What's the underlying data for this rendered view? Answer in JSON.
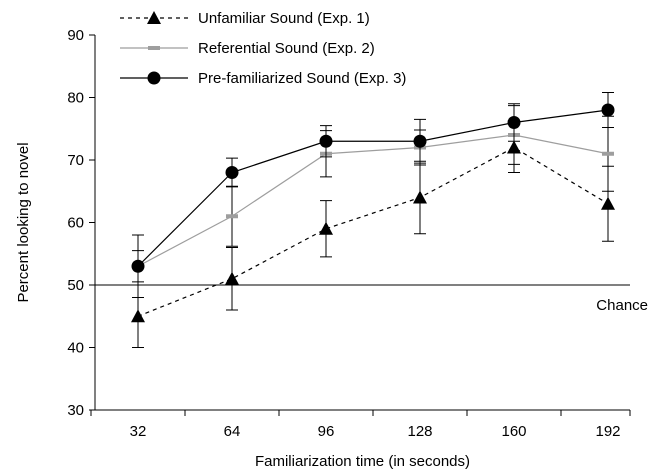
{
  "chart_data": {
    "type": "line",
    "title": "",
    "xlabel": "Familiarization time (in seconds)",
    "ylabel": "Percent looking to novel",
    "ylim": [
      30,
      90
    ],
    "yticks": [
      30,
      40,
      50,
      60,
      70,
      80,
      90
    ],
    "x": [
      32,
      64,
      96,
      128,
      160,
      192
    ],
    "x_tick_labels": [
      "32",
      "64",
      "96",
      "128",
      "160",
      "192"
    ],
    "grid": false,
    "legend_position": "top-left",
    "reference_line": {
      "value": 50,
      "label": "Chance"
    },
    "series": [
      {
        "name": "Unfamiliar Sound (Exp. 1)",
        "marker": "triangle",
        "line_style": "dashed",
        "color": "#000000",
        "values": [
          45,
          51,
          59,
          64,
          72,
          63
        ],
        "error": [
          5,
          5,
          4.5,
          5.8,
          4,
          6
        ]
      },
      {
        "name": "Referential Sound (Exp. 2)",
        "marker": "dash",
        "line_style": "solid",
        "color": "#9e9e9e",
        "values": [
          53,
          61,
          71,
          72,
          74,
          71
        ],
        "error": [
          2.5,
          4.8,
          3.7,
          2.8,
          4.7,
          6
        ]
      },
      {
        "name": "Pre-familiarized Sound (Exp. 3)",
        "marker": "circle",
        "line_style": "solid",
        "color": "#000000",
        "values": [
          53,
          68,
          73,
          73,
          76,
          78
        ],
        "error": [
          5,
          2.3,
          2.5,
          3.5,
          3,
          2.8
        ]
      }
    ]
  }
}
